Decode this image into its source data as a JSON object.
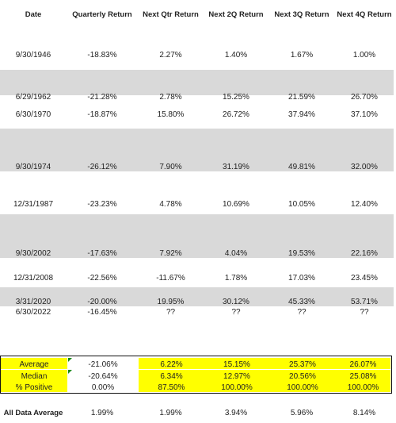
{
  "headers": [
    "Date",
    "Quarterly Return",
    "Next Qtr Return",
    "Next 2Q Return",
    "Next 3Q Return",
    "Next 4Q Return"
  ],
  "rows": [
    {
      "date": "9/30/1946",
      "q": "-18.83%",
      "n1": "2.27%",
      "n2": "1.40%",
      "n3": "1.67%",
      "n4": "1.00%"
    },
    {
      "date": "6/29/1962",
      "q": "-21.28%",
      "n1": "2.78%",
      "n2": "15.25%",
      "n3": "21.59%",
      "n4": "26.70%"
    },
    {
      "date": "6/30/1970",
      "q": "-18.87%",
      "n1": "15.80%",
      "n2": "26.72%",
      "n3": "37.94%",
      "n4": "37.10%"
    },
    {
      "date": "9/30/1974",
      "q": "-26.12%",
      "n1": "7.90%",
      "n2": "31.19%",
      "n3": "49.81%",
      "n4": "32.00%"
    },
    {
      "date": "12/31/1987",
      "q": "-23.23%",
      "n1": "4.78%",
      "n2": "10.69%",
      "n3": "10.05%",
      "n4": "12.40%"
    },
    {
      "date": "9/30/2002",
      "q": "-17.63%",
      "n1": "7.92%",
      "n2": "4.04%",
      "n3": "19.53%",
      "n4": "22.16%"
    },
    {
      "date": "12/31/2008",
      "q": "-22.56%",
      "n1": "-11.67%",
      "n2": "1.78%",
      "n3": "17.03%",
      "n4": "23.45%"
    },
    {
      "date": "3/31/2020",
      "q": "-20.00%",
      "n1": "19.95%",
      "n2": "30.12%",
      "n3": "45.33%",
      "n4": "53.71%"
    },
    {
      "date": "6/30/2022",
      "q": "-16.45%",
      "n1": "??",
      "n2": "??",
      "n3": "??",
      "n4": "??"
    }
  ],
  "summary": [
    {
      "label": "Average",
      "q": "-21.06%",
      "n1": "6.22%",
      "n2": "15.15%",
      "n3": "25.37%",
      "n4": "26.07%"
    },
    {
      "label": "Median",
      "q": "-20.64%",
      "n1": "6.34%",
      "n2": "12.97%",
      "n3": "20.56%",
      "n4": "25.08%"
    },
    {
      "label": "% Positive",
      "q": "0.00%",
      "n1": "87.50%",
      "n2": "100.00%",
      "n3": "100.00%",
      "n4": "100.00%"
    }
  ],
  "all_data_average": {
    "label": "All Data Average",
    "q": "1.99%",
    "n1": "1.99%",
    "n2": "3.94%",
    "n3": "5.96%",
    "n4": "8.14%"
  },
  "colors": {
    "band_gray": "#d9d9d9",
    "highlight_yellow": "#ffff00",
    "marker_green": "#1a8a1a"
  }
}
